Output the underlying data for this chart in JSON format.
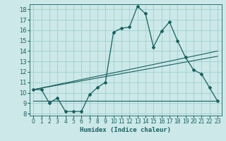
{
  "title": "",
  "xlabel": "Humidex (Indice chaleur)",
  "ylabel": "",
  "bg_color": "#cce8e8",
  "grid_color": "#9fcfcf",
  "line_color": "#1a6060",
  "xlim": [
    -0.5,
    23.5
  ],
  "ylim": [
    7.8,
    18.5
  ],
  "yticks": [
    8,
    9,
    10,
    11,
    12,
    13,
    14,
    15,
    16,
    17,
    18
  ],
  "xticks": [
    0,
    1,
    2,
    3,
    4,
    5,
    6,
    7,
    8,
    9,
    10,
    11,
    12,
    13,
    14,
    15,
    16,
    17,
    18,
    19,
    20,
    21,
    22,
    23
  ],
  "series1_x": [
    0,
    1,
    2,
    3,
    4,
    5,
    6,
    7,
    8,
    9,
    10,
    11,
    12,
    13,
    14,
    15,
    16,
    17,
    18,
    19,
    20,
    21,
    22,
    23
  ],
  "series1_y": [
    10.3,
    10.3,
    9.0,
    9.5,
    8.2,
    8.2,
    8.2,
    9.8,
    10.5,
    11.0,
    15.8,
    16.2,
    16.3,
    18.3,
    17.6,
    14.4,
    15.9,
    16.8,
    15.0,
    13.4,
    12.2,
    11.8,
    10.5,
    9.2
  ],
  "series2_x": [
    0,
    23
  ],
  "series2_y": [
    9.2,
    9.2
  ],
  "series3_x": [
    0,
    23
  ],
  "series3_y": [
    10.3,
    13.5
  ],
  "series4_x": [
    0,
    23
  ],
  "series4_y": [
    10.3,
    14.0
  ],
  "xlabel_fontsize": 6.5,
  "tick_fontsize": 5.5,
  "ytick_fontsize": 6.0
}
